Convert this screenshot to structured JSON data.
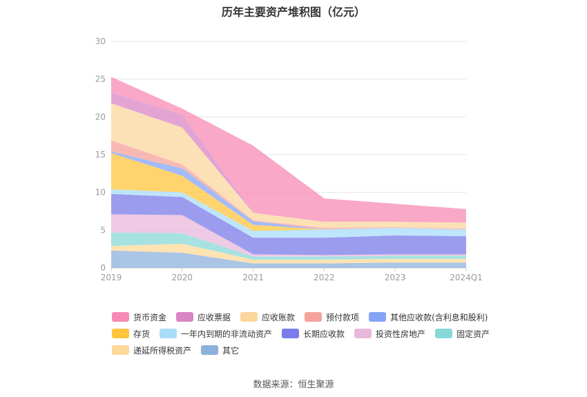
{
  "chart_data": {
    "type": "area",
    "stacked": true,
    "title": "历年主要资产堆积图（亿元）",
    "x": [
      "2019",
      "2020",
      "2021",
      "2022",
      "2023",
      "2024Q1"
    ],
    "ylim": [
      0,
      30
    ],
    "yticks": [
      0,
      5,
      10,
      15,
      20,
      25,
      30
    ],
    "grid": true,
    "legend_position": "bottom",
    "series": [
      {
        "name": "其它",
        "color": "#8EB0DC",
        "values": [
          2.3,
          2.0,
          0.6,
          0.6,
          0.7,
          0.7
        ]
      },
      {
        "name": "递延所得税资产",
        "color": "#FFD99A",
        "values": [
          0.6,
          1.2,
          0.5,
          0.5,
          0.5,
          0.5
        ]
      },
      {
        "name": "固定资产",
        "color": "#88D8D8",
        "values": [
          1.8,
          1.4,
          0.4,
          0.4,
          0.4,
          0.4
        ]
      },
      {
        "name": "投资性房地产",
        "color": "#E8B8DC",
        "values": [
          2.4,
          2.4,
          0.3,
          0.2,
          0.2,
          0.2
        ]
      },
      {
        "name": "长期应收款",
        "color": "#7B7BEA",
        "values": [
          2.7,
          2.4,
          2.2,
          2.3,
          2.5,
          2.4
        ]
      },
      {
        "name": "一年内到期的非流动资产",
        "color": "#A8DEFA",
        "values": [
          0.6,
          0.6,
          0.9,
          1.1,
          1.0,
          0.9
        ]
      },
      {
        "name": "存货",
        "color": "#FFC53D",
        "values": [
          4.8,
          2.2,
          0.8,
          0.0,
          0.0,
          0.0
        ]
      },
      {
        "name": "其他应收款(含利息和股利)",
        "color": "#84A4F5",
        "values": [
          0.2,
          1.0,
          0.5,
          0.0,
          0.0,
          0.0
        ]
      },
      {
        "name": "预付款项",
        "color": "#F5A29C",
        "values": [
          1.5,
          0.5,
          0.1,
          0.2,
          0.1,
          0.1
        ]
      },
      {
        "name": "应收账款",
        "color": "#FBD79E",
        "values": [
          4.9,
          4.9,
          1.0,
          0.8,
          0.7,
          0.8
        ]
      },
      {
        "name": "应收票据",
        "color": "#D986C6",
        "values": [
          1.4,
          1.7,
          0.0,
          0.0,
          0.0,
          0.0
        ]
      },
      {
        "name": "货币资金",
        "color": "#F78BB5",
        "values": [
          2.1,
          0.8,
          8.9,
          3.1,
          2.4,
          1.8
        ]
      }
    ],
    "legend_order": [
      "货币资金",
      "应收票据",
      "应收账款",
      "预付款项",
      "其他应收款(含利息和股利)",
      "存货",
      "一年内到期的非流动资产",
      "长期应收款",
      "投资性房地产",
      "固定资产",
      "递延所得税资产",
      "其它"
    ]
  },
  "source_text": "数据来源：恒生聚源"
}
